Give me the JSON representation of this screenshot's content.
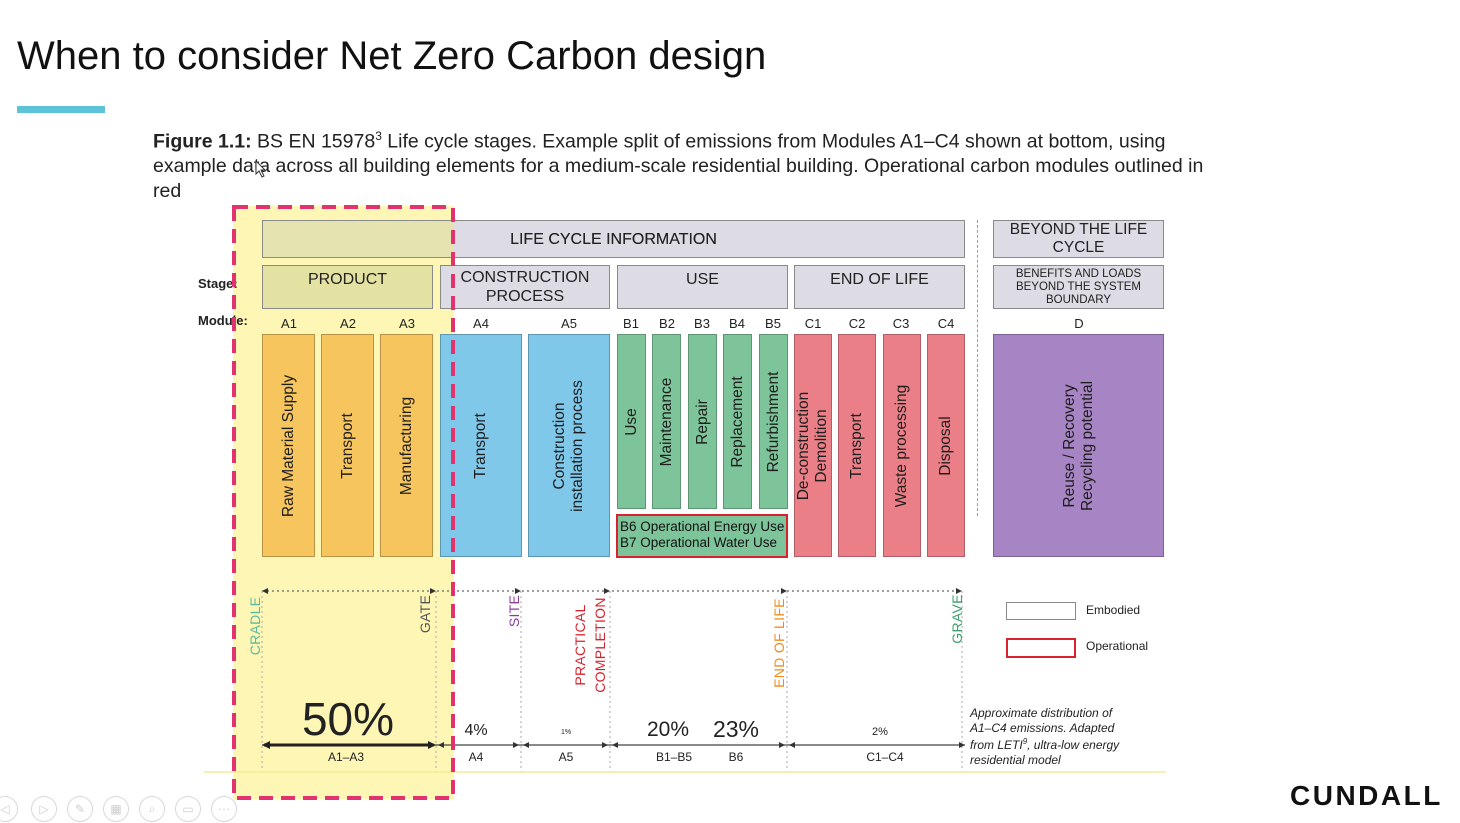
{
  "title": "When to consider Net Zero Carbon design",
  "caption": {
    "figure_label": "Figure 1.1:",
    "sup": "3",
    "text_before_sup": " BS EN 15978",
    "text_after_sup": " Life cycle stages. Example split of emissions from Modules A1–C4 shown at bottom, using example data across all building elements for a medium-scale residential building. Operational carbon modules outlined in red"
  },
  "header": {
    "life_cycle_information": "LIFE CYCLE INFORMATION",
    "beyond_life_cycle": "BEYOND THE LIFE CYCLE"
  },
  "row_labels": {
    "stage": "Stage:",
    "module": "Module:"
  },
  "stages": {
    "product": "PRODUCT",
    "construction": "CONSTRUCTION PROCESS",
    "use": "USE",
    "end_of_life": "END OF LIFE",
    "beyond": "BENEFITS AND LOADS BEYOND THE SYSTEM BOUNDARY"
  },
  "modules": [
    {
      "code": "A1",
      "label": "Raw Material Supply"
    },
    {
      "code": "A2",
      "label": "Transport"
    },
    {
      "code": "A3",
      "label": "Manufacturing"
    },
    {
      "code": "A4",
      "label": "Transport"
    },
    {
      "code": "A5",
      "label_line1": "Construction",
      "label_line2": "installation process"
    },
    {
      "code": "B1",
      "label": "Use"
    },
    {
      "code": "B2",
      "label": "Maintenance"
    },
    {
      "code": "B3",
      "label": "Repair"
    },
    {
      "code": "B4",
      "label": "Replacement"
    },
    {
      "code": "B5",
      "label": "Refurbishment"
    },
    {
      "code": "C1",
      "label_line1": "De-construction",
      "label_line2": "Demolition"
    },
    {
      "code": "C2",
      "label": "Transport"
    },
    {
      "code": "C3",
      "label": "Waste processing"
    },
    {
      "code": "C4",
      "label": "Disposal"
    },
    {
      "code": "D",
      "label_line1": "Reuse / Recovery",
      "label_line2": "Recycling potential"
    }
  ],
  "operational_box": {
    "line1": "B6 Operational Energy Use",
    "line2": "B7 Operational Water Use"
  },
  "milestones": {
    "cradle": "CRADLE",
    "gate": "GATE",
    "site": "SITE",
    "practical_line1": "PRACTICAL",
    "practical_line2": "COMPLETION",
    "end_of_life": "END OF LIFE",
    "grave": "GRAVE"
  },
  "legend": {
    "embodied": "Embodied",
    "operational": "Operational"
  },
  "distribution": {
    "percentages": [
      {
        "range": "A1–A3",
        "value": "50%"
      },
      {
        "range": "A4",
        "value": "4%"
      },
      {
        "range": "A5",
        "value": "1%"
      },
      {
        "range": "B1–B5",
        "value": "20%"
      },
      {
        "range": "B6",
        "value": "23%"
      },
      {
        "range": "C1–C4",
        "value": "2%"
      }
    ],
    "note_line1": "Approximate distribution of",
    "note_line2": "A1–C4 emissions. Adapted",
    "note_line3_before_sup": "from LETI",
    "note_sup": "9",
    "note_line3_after_sup": ", ultra-low energy",
    "note_line4": "residential model"
  },
  "colors": {
    "product": "#f6c55e",
    "construction": "#7fc8ea",
    "use": "#7ec49a",
    "end_of_life": "#ea7f87",
    "beyond": "#a785c4",
    "highlight": "#fdf5a8",
    "highlight_border": "#e3336f",
    "accent_bar": "#5cc3d9",
    "operational_outline": "#d8232e"
  },
  "logo": "CUNDALL"
}
